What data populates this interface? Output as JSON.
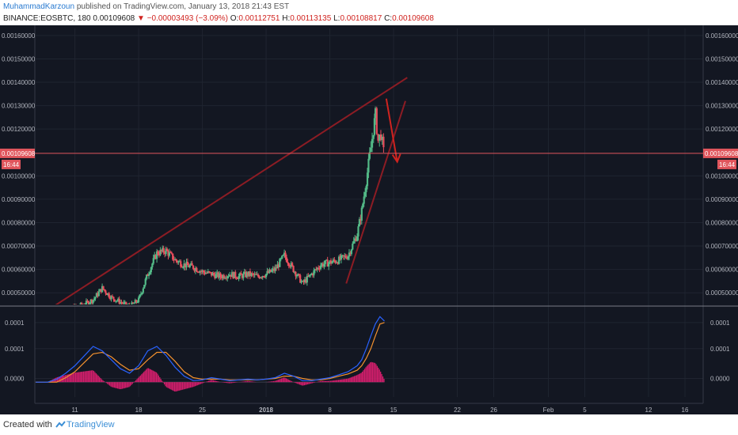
{
  "header": {
    "author": "MuhammadKarzoun",
    "published": "published on TradingView.com, January 13, 2018 21:43 EST",
    "symbol": "BINANCE:EOSBTC, 180",
    "last": "0.00109608",
    "change": "−0.00003493 (−3.09%)",
    "o_label": "O:",
    "o": "0.00112751",
    "h_label": "H:",
    "h": "0.00113135",
    "l_label": "L:",
    "l": "0.00108817",
    "c_label": "C:",
    "c": "0.00109608"
  },
  "footer": {
    "created": "Created with",
    "brand": "TradingView"
  },
  "colors": {
    "bg": "#131722",
    "up": "#53b987",
    "down": "#eb4d5c",
    "accent": "#d0231f",
    "macd": "#2962ff",
    "signal": "#f5922f",
    "hist": "#d01e6b"
  },
  "chart_data": [
    {
      "type": "candlestick",
      "title": "BINANCE:EOSBTC, 180",
      "y_ticks": [
        "0.00160000",
        "0.00150000",
        "0.00140000",
        "0.00130000",
        "0.00120000",
        "0.00100000",
        "0.00090000",
        "0.00080000",
        "0.00070000",
        "0.00060000",
        "0.00050000"
      ],
      "y_tick_values": [
        0.0016,
        0.0015,
        0.0014,
        0.0013,
        0.0012,
        0.001,
        0.0009,
        0.0008,
        0.0007,
        0.0006,
        0.0005
      ],
      "ylim": [
        0.00045,
        0.00163
      ],
      "current_price_label": "0.00109608",
      "current_price": 0.00109608,
      "countdown": "16:44",
      "x_tick_labels": [
        "11",
        "18",
        "25",
        "2018",
        "8",
        "15",
        "22",
        "26",
        "Feb",
        "5",
        "12",
        "16"
      ],
      "x_tick_days": [
        11,
        18,
        25,
        32,
        39,
        46,
        53,
        57,
        63,
        67,
        74,
        78
      ],
      "xlim": [
        6.6,
        80
      ],
      "close": [
        {
          "x": 9,
          "y": 0.00042
        },
        {
          "x": 10,
          "y": 0.00043
        },
        {
          "x": 11,
          "y": 0.00044
        },
        {
          "x": 12,
          "y": 0.00045
        },
        {
          "x": 13,
          "y": 0.00047
        },
        {
          "x": 14,
          "y": 0.00052
        },
        {
          "x": 15,
          "y": 0.00048
        },
        {
          "x": 16,
          "y": 0.00046
        },
        {
          "x": 17,
          "y": 0.00044
        },
        {
          "x": 18,
          "y": 0.00047
        },
        {
          "x": 19,
          "y": 0.00058
        },
        {
          "x": 20,
          "y": 0.00067
        },
        {
          "x": 21,
          "y": 0.00068
        },
        {
          "x": 22,
          "y": 0.00064
        },
        {
          "x": 23,
          "y": 0.00062
        },
        {
          "x": 24,
          "y": 0.00061
        },
        {
          "x": 25,
          "y": 0.00059
        },
        {
          "x": 26,
          "y": 0.00058
        },
        {
          "x": 27,
          "y": 0.00057
        },
        {
          "x": 28,
          "y": 0.00058
        },
        {
          "x": 29,
          "y": 0.00057
        },
        {
          "x": 30,
          "y": 0.00058
        },
        {
          "x": 31,
          "y": 0.00057
        },
        {
          "x": 32,
          "y": 0.00058
        },
        {
          "x": 33,
          "y": 0.0006
        },
        {
          "x": 34,
          "y": 0.00066
        },
        {
          "x": 35,
          "y": 0.0006
        },
        {
          "x": 36,
          "y": 0.00054
        },
        {
          "x": 37,
          "y": 0.00058
        },
        {
          "x": 38,
          "y": 0.00062
        },
        {
          "x": 39,
          "y": 0.00063
        },
        {
          "x": 40,
          "y": 0.00064
        },
        {
          "x": 41,
          "y": 0.00066
        },
        {
          "x": 42,
          "y": 0.00075
        },
        {
          "x": 42.5,
          "y": 0.00085
        },
        {
          "x": 43,
          "y": 0.00098
        },
        {
          "x": 43.5,
          "y": 0.00112
        },
        {
          "x": 43.8,
          "y": 0.0012
        },
        {
          "x": 44,
          "y": 0.00126
        },
        {
          "x": 44.3,
          "y": 0.00115
        },
        {
          "x": 44.6,
          "y": 0.00118
        },
        {
          "x": 44.9,
          "y": 0.0011
        }
      ],
      "annotations": [
        {
          "kind": "trendline",
          "from": [
            7,
            0.0004
          ],
          "to": [
            47.5,
            0.00142
          ]
        },
        {
          "kind": "trendline",
          "from": [
            40.8,
            0.00054
          ],
          "to": [
            47.3,
            0.00132
          ]
        },
        {
          "kind": "arrow",
          "from": [
            45.2,
            0.00133
          ],
          "to": [
            46.4,
            0.00106
          ]
        }
      ]
    },
    {
      "type": "line",
      "title": "MACD",
      "y_ticks": [
        "0.0001",
        "0.0001",
        "0.0000"
      ],
      "y_tick_values": [
        8e-05,
        4.5e-05,
        5e-06
      ],
      "ylim": [
        -2e-05,
        0.0001
      ],
      "series": [
        {
          "role": "macd",
          "x": [
            6.7,
            8,
            9,
            10,
            11,
            12,
            13,
            14,
            15,
            16,
            17,
            18,
            19,
            20,
            21,
            22,
            23,
            24,
            25,
            26,
            27,
            28,
            29,
            30,
            31,
            32,
            33,
            34,
            35,
            36,
            37,
            38,
            39,
            40,
            41,
            42,
            42.5,
            43,
            43.5,
            44,
            44.5,
            45
          ],
          "values": [
            0.0,
            0.0,
            4e-06,
            1.2e-05,
            2.2e-05,
            3.5e-05,
            4.8e-05,
            4.2e-05,
            3e-05,
            1.8e-05,
            1.2e-05,
            2.2e-05,
            4.2e-05,
            4.8e-05,
            3.6e-05,
            2e-05,
            8e-06,
            2e-06,
            3e-06,
            6e-06,
            4e-06,
            2e-06,
            3e-06,
            4e-06,
            3e-06,
            4e-06,
            6e-06,
            1.2e-05,
            8e-06,
            2e-06,
            2e-06,
            4e-06,
            6e-06,
            1e-05,
            1.4e-05,
            2.2e-05,
            3e-05,
            4.5e-05,
            6.2e-05,
            7.8e-05,
            8.8e-05,
            8.2e-05
          ]
        },
        {
          "role": "signal",
          "x": [
            6.7,
            8,
            9,
            10,
            11,
            12,
            13,
            14,
            15,
            16,
            17,
            18,
            19,
            20,
            21,
            22,
            23,
            24,
            25,
            26,
            27,
            28,
            29,
            30,
            31,
            32,
            33,
            34,
            35,
            36,
            37,
            38,
            39,
            40,
            41,
            42,
            42.5,
            43,
            43.5,
            44,
            44.5,
            45
          ],
          "values": [
            0.0,
            0.0,
            0.0,
            6e-06,
            1.4e-05,
            2.6e-05,
            3.8e-05,
            4e-05,
            3.4e-05,
            2.4e-05,
            1.6e-05,
            1.8e-05,
            3e-05,
            4e-05,
            4e-05,
            2.8e-05,
            1.4e-05,
            6e-06,
            4e-06,
            4e-06,
            4e-06,
            3e-06,
            3e-06,
            3e-06,
            3e-06,
            4e-06,
            5e-06,
            8e-06,
            8e-06,
            5e-06,
            3e-06,
            3e-06,
            5e-06,
            8e-06,
            1.1e-05,
            1.6e-05,
            2.2e-05,
            3.2e-05,
            4.5e-05,
            6.2e-05,
            7.8e-05,
            8e-05
          ]
        }
      ],
      "histogram_range": [
        6.7,
        45
      ]
    }
  ]
}
